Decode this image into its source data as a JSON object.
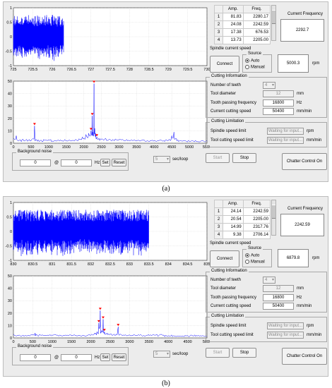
{
  "figures": [
    {
      "caption": "(a)",
      "plot_top": {
        "x_ticks": [
          "725",
          "725.5",
          "726",
          "726.5",
          "727",
          "727.5",
          "728",
          "728.5",
          "729",
          "729.5",
          "730"
        ],
        "y_ticks": [
          "1",
          "0.5",
          "0",
          "-0.5",
          "-1"
        ],
        "xlim": [
          725,
          730
        ],
        "ylim": [
          -1,
          1
        ],
        "signal_range": [
          725,
          726.3
        ]
      },
      "plot_bottom": {
        "x_ticks": [
          "0",
          "500",
          "1000",
          "1500",
          "2000",
          "2500",
          "3000",
          "3500",
          "4000",
          "4500",
          "5000",
          "5500"
        ],
        "y_ticks": [
          "50",
          "40",
          "30",
          "20",
          "10",
          "0"
        ],
        "xlim": [
          0,
          5500
        ],
        "ylim": [
          0,
          50
        ],
        "spectrum": [
          [
            0,
            4
          ],
          [
            80,
            6
          ],
          [
            150,
            2
          ],
          [
            250,
            3
          ],
          [
            350,
            2.5
          ],
          [
            450,
            3
          ],
          [
            540,
            3.5
          ],
          [
            600,
            14
          ],
          [
            660,
            3
          ],
          [
            760,
            2
          ],
          [
            860,
            3
          ],
          [
            960,
            2
          ],
          [
            1060,
            3
          ],
          [
            1160,
            2
          ],
          [
            1260,
            2.5
          ],
          [
            1360,
            2
          ],
          [
            1460,
            3
          ],
          [
            1560,
            2
          ],
          [
            1660,
            2
          ],
          [
            1760,
            3
          ],
          [
            1860,
            3.5
          ],
          [
            1960,
            5
          ],
          [
            2060,
            7
          ],
          [
            2140,
            8
          ],
          [
            2205,
            10
          ],
          [
            2240,
            22
          ],
          [
            2262,
            9
          ],
          [
            2290,
            48
          ],
          [
            2310,
            12
          ],
          [
            2340,
            8
          ],
          [
            2370,
            5
          ],
          [
            2430,
            4
          ],
          [
            2520,
            3.5
          ],
          [
            2620,
            4
          ],
          [
            2720,
            3
          ],
          [
            2820,
            3
          ],
          [
            2920,
            3
          ],
          [
            3020,
            3
          ],
          [
            3120,
            2.5
          ],
          [
            3220,
            3
          ],
          [
            3320,
            2
          ],
          [
            3420,
            2.5
          ],
          [
            3520,
            2
          ],
          [
            3620,
            2
          ],
          [
            3720,
            2.5
          ],
          [
            3820,
            2
          ],
          [
            3920,
            2
          ],
          [
            4020,
            2
          ],
          [
            4120,
            2
          ],
          [
            4220,
            2
          ],
          [
            4320,
            2.5
          ],
          [
            4420,
            3
          ],
          [
            4500,
            6
          ],
          [
            4560,
            9
          ],
          [
            4620,
            4
          ],
          [
            4720,
            2
          ],
          [
            4820,
            2
          ],
          [
            4920,
            1.5
          ],
          [
            5020,
            1.5
          ],
          [
            5120,
            1.5
          ],
          [
            5220,
            1.5
          ],
          [
            5320,
            1.5
          ],
          [
            5420,
            1.5
          ],
          [
            5500,
            1.5
          ]
        ],
        "markers": [
          [
            600,
            14
          ],
          [
            2205,
            10
          ],
          [
            2240,
            22
          ],
          [
            2290,
            48
          ],
          [
            2370,
            5
          ]
        ]
      },
      "table": {
        "headers": [
          "Amp.",
          "Freq."
        ],
        "rows": [
          [
            "1",
            "81.83",
            "2280.17"
          ],
          [
            "2",
            "24.08",
            "2242.59"
          ],
          [
            "3",
            "17.38",
            "676.53"
          ],
          [
            "4",
            "13.73",
            "2205.00"
          ]
        ]
      },
      "current_frequency_label": "Current Frequency",
      "current_frequency_value": "2292.7",
      "spindle_label": "Spindle current speed",
      "connect_label": "Connect",
      "source_label": "Source",
      "source_options": [
        "Auto",
        "Manual"
      ],
      "speed_value": "5000.3",
      "speed_unit": "rpm",
      "cutting_info_title": "Cutting Information",
      "teeth_label": "Number of teeth",
      "teeth_value": "4",
      "diameter_label": "Tool diameter",
      "diameter_value": "12",
      "diameter_unit": "mm",
      "tooth_freq_label": "Tooth passing frequency",
      "tooth_freq_value": "16800",
      "tooth_freq_unit": "Hz",
      "cutting_speed_label": "Current cutting speed",
      "cutting_speed_value": "50400",
      "cutting_speed_unit": "mm/min",
      "limitation_title": "Cutting Limitation",
      "spindle_limit_label": "Spindle speed limit",
      "spindle_limit_value": "Waiting for input...",
      "spindle_limit_unit": "rpm",
      "tool_limit_label": "Tool cutting speed limit",
      "tool_limit_value": "Waiting for input...",
      "tool_limit_unit": "mm/min",
      "bg_noise_title": "Background noise",
      "bg_noise_a": "0",
      "bg_noise_at": "@",
      "bg_noise_b": "0",
      "bg_noise_unit": "Hz",
      "set_label": "Set",
      "reset_label": "Reset",
      "loop_value": "5",
      "loop_unit": "sec/loop",
      "start_label": "Start",
      "stop_label": "Stop",
      "chatter_label": "Chatter Control On"
    },
    {
      "caption": "(b)",
      "plot_top": {
        "x_ticks": [
          "830",
          "830.5",
          "831",
          "831.5",
          "832",
          "832.5",
          "833",
          "833.5",
          "834",
          "834.5",
          "835"
        ],
        "y_ticks": [
          "1",
          "0.5",
          "0",
          "-0.5",
          "-1"
        ],
        "xlim": [
          830,
          835
        ],
        "ylim": [
          -1,
          1
        ],
        "signal_range": [
          830,
          833.5
        ]
      },
      "plot_bottom": {
        "x_ticks": [
          "0",
          "500",
          "1000",
          "1500",
          "2000",
          "2500",
          "3000",
          "3500",
          "4000",
          "4500",
          "5000"
        ],
        "y_ticks": [
          "50",
          "40",
          "30",
          "20",
          "10",
          "0"
        ],
        "xlim": [
          0,
          5000
        ],
        "ylim": [
          0,
          50
        ],
        "spectrum": [
          [
            0,
            3
          ],
          [
            100,
            2
          ],
          [
            200,
            1.5
          ],
          [
            300,
            2
          ],
          [
            400,
            2
          ],
          [
            500,
            2.5
          ],
          [
            560,
            4
          ],
          [
            620,
            2
          ],
          [
            720,
            2
          ],
          [
            820,
            2
          ],
          [
            920,
            2
          ],
          [
            1020,
            2
          ],
          [
            1120,
            2
          ],
          [
            1220,
            2
          ],
          [
            1320,
            2
          ],
          [
            1420,
            2
          ],
          [
            1520,
            2
          ],
          [
            1620,
            2
          ],
          [
            1720,
            2
          ],
          [
            1820,
            2
          ],
          [
            1920,
            2
          ],
          [
            2020,
            3
          ],
          [
            2100,
            4
          ],
          [
            2160,
            5
          ],
          [
            2205,
            12
          ],
          [
            2242,
            22
          ],
          [
            2280,
            6
          ],
          [
            2317,
            15
          ],
          [
            2350,
            5
          ],
          [
            2420,
            4
          ],
          [
            2500,
            3
          ],
          [
            2600,
            3
          ],
          [
            2706,
            9
          ],
          [
            2760,
            3
          ],
          [
            2860,
            2
          ],
          [
            2960,
            2
          ],
          [
            3060,
            2
          ],
          [
            3160,
            2
          ],
          [
            3260,
            2
          ],
          [
            3360,
            2
          ],
          [
            3460,
            2
          ],
          [
            3560,
            2
          ],
          [
            3660,
            2
          ],
          [
            3760,
            2
          ],
          [
            3860,
            2
          ],
          [
            3960,
            1.5
          ],
          [
            4060,
            1.5
          ],
          [
            4160,
            1.5
          ],
          [
            4260,
            1.5
          ],
          [
            4360,
            1.5
          ],
          [
            4460,
            1.5
          ],
          [
            4560,
            1.5
          ],
          [
            4660,
            1.5
          ],
          [
            4760,
            1.5
          ],
          [
            4860,
            1.5
          ],
          [
            5000,
            1.5
          ]
        ],
        "markers": [
          [
            2205,
            12
          ],
          [
            2242,
            22
          ],
          [
            2317,
            15
          ],
          [
            2706,
            9
          ],
          [
            2350,
            5
          ]
        ]
      },
      "table": {
        "headers": [
          "Amp.",
          "Freq."
        ],
        "rows": [
          [
            "1",
            "24.14",
            "2242.59"
          ],
          [
            "2",
            "20.54",
            "2205.00"
          ],
          [
            "3",
            "14.99",
            "2317.76"
          ],
          [
            "4",
            "9.38",
            "2706.14"
          ]
        ]
      },
      "current_frequency_label": "Current Frequency",
      "current_frequency_value": "2242.59",
      "spindle_label": "Spindle current speed",
      "connect_label": "Connect",
      "source_label": "Source",
      "source_options": [
        "Auto",
        "Manual"
      ],
      "speed_value": "6879.8",
      "speed_unit": "rpm",
      "cutting_info_title": "Cutting Information",
      "teeth_label": "Number of teeth",
      "teeth_value": "4",
      "diameter_label": "Tool diameter",
      "diameter_value": "12",
      "diameter_unit": "mm",
      "tooth_freq_label": "Tooth passing frequency",
      "tooth_freq_value": "16800",
      "tooth_freq_unit": "Hz",
      "cutting_speed_label": "Current cutting speed",
      "cutting_speed_value": "50400",
      "cutting_speed_unit": "mm/min",
      "limitation_title": "Cutting Limitation",
      "spindle_limit_label": "Spindle speed limit",
      "spindle_limit_value": "Waiting for input...",
      "spindle_limit_unit": "rpm",
      "tool_limit_label": "Tool cutting speed limit",
      "tool_limit_value": "Waiting for input...",
      "tool_limit_unit": "mm/min",
      "bg_noise_title": "Background noise",
      "bg_noise_a": "0",
      "bg_noise_at": "@",
      "bg_noise_b": "0",
      "bg_noise_unit": "Hz",
      "set_label": "Set",
      "reset_label": "Reset",
      "loop_value": "5",
      "loop_unit": "sec/loop",
      "start_label": "Start",
      "stop_label": "Stop",
      "chatter_label": "Chatter Control On"
    }
  ],
  "colors": {
    "signal": "#0000ff",
    "marker": "#ff0000",
    "panel": "#ececec"
  }
}
